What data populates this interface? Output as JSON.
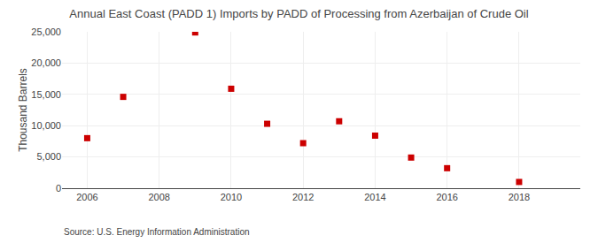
{
  "chart_data": {
    "type": "scatter",
    "title": "Annual East Coast (PADD 1) Imports by PADD of Processing from Azerbaijan of Crude Oil",
    "ylabel": "Thousand Barrels",
    "source": "Source: U.S. Energy Information Administration",
    "x": [
      2006,
      2007,
      2009,
      2010,
      2011,
      2012,
      2013,
      2014,
      2015,
      2016,
      2018
    ],
    "values": [
      8000,
      14600,
      24900,
      15900,
      10300,
      7200,
      10700,
      8400,
      4900,
      3200,
      1000
    ],
    "color": "#cc0000",
    "marker": "square",
    "xlim": [
      2005.3,
      2019.7
    ],
    "ylim": [
      0,
      25000
    ],
    "xticks": [
      2006,
      2008,
      2010,
      2012,
      2014,
      2016,
      2018
    ],
    "yticks": [
      0,
      {
        "value": 5000,
        "label": "5,000"
      },
      {
        "value": 10000,
        "label": "10,000"
      },
      {
        "value": 15000,
        "label": "15,000"
      },
      {
        "value": 20000,
        "label": "20,000"
      },
      {
        "value": 25000,
        "label": "25,000"
      }
    ],
    "grid": true
  }
}
